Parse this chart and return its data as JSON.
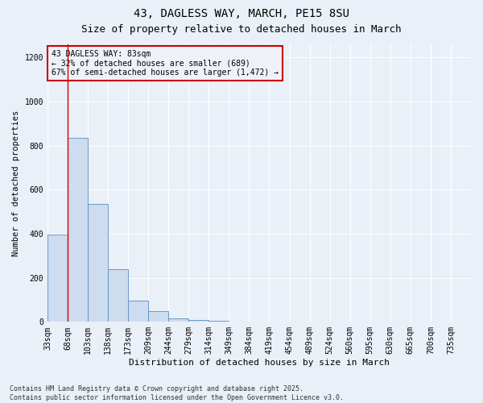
{
  "title1": "43, DAGLESS WAY, MARCH, PE15 8SU",
  "title2": "Size of property relative to detached houses in March",
  "xlabel": "Distribution of detached houses by size in March",
  "ylabel": "Number of detached properties",
  "bin_edges": [
    0,
    1,
    2,
    3,
    4,
    5,
    6,
    7,
    8,
    9,
    10,
    11,
    12,
    13,
    14,
    15,
    16,
    17,
    18,
    19,
    20,
    21
  ],
  "categories": [
    "33sqm",
    "68sqm",
    "103sqm",
    "138sqm",
    "173sqm",
    "209sqm",
    "244sqm",
    "279sqm",
    "314sqm",
    "349sqm",
    "384sqm",
    "419sqm",
    "454sqm",
    "489sqm",
    "524sqm",
    "560sqm",
    "595sqm",
    "630sqm",
    "665sqm",
    "700sqm",
    "735sqm"
  ],
  "values": [
    395,
    835,
    535,
    240,
    95,
    48,
    15,
    8,
    5,
    3,
    2,
    1,
    0,
    0,
    0,
    0,
    0,
    0,
    0,
    0,
    0
  ],
  "bar_color": "#cddcee",
  "bar_edge_color": "#5b8ec4",
  "vline_x": 1.0,
  "vline_color": "#cc0000",
  "annotation_box_text": "43 DAGLESS WAY: 83sqm\n← 32% of detached houses are smaller (689)\n67% of semi-detached houses are larger (1,472) →",
  "box_facecolor": "#eef2f8",
  "box_edgecolor": "#cc0000",
  "ylim": [
    0,
    1260
  ],
  "yticks": [
    0,
    200,
    400,
    600,
    800,
    1000,
    1200
  ],
  "background_color": "#eaf0f8",
  "grid_color": "#ffffff",
  "footer_text": "Contains HM Land Registry data © Crown copyright and database right 2025.\nContains public sector information licensed under the Open Government Licence v3.0.",
  "title_fontsize": 10,
  "subtitle_fontsize": 9,
  "annotation_fontsize": 7,
  "footer_fontsize": 6,
  "axis_fontsize": 7,
  "ylabel_fontsize": 7.5
}
